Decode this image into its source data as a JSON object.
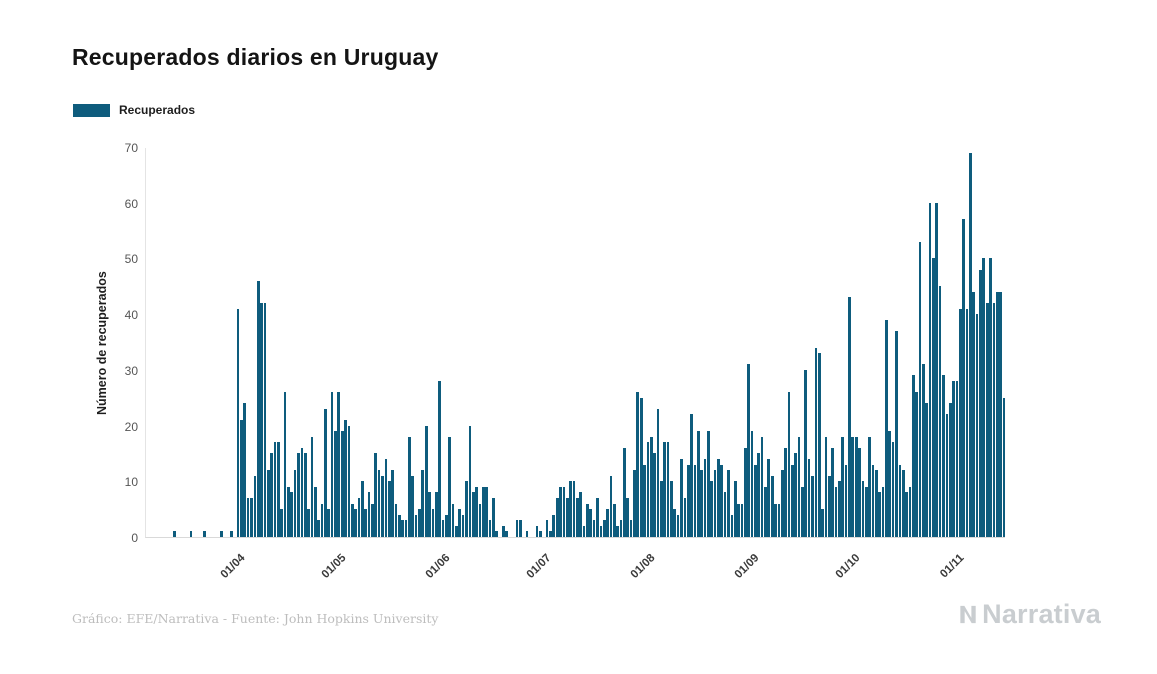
{
  "page": {
    "title": "Recuperados diarios en Uruguay"
  },
  "legend": {
    "label": "Recuperados"
  },
  "footer": {
    "credit": "Gráfico: EFE/Narrativa - Fuente: John Hopkins University"
  },
  "logo": {
    "text": "Narrativa"
  },
  "colors": {
    "bar": "#0e5c7d",
    "axis_line": "#dcdcdc",
    "tick_text": "#3a3a3a"
  },
  "chart_data": {
    "type": "bar",
    "title": "Recuperados diarios en Uruguay",
    "series_name": "Recuperados",
    "xlabel": "",
    "ylabel": "Número de recuperados",
    "ylim": [
      0,
      70
    ],
    "grid": false,
    "legend_position": "top-left",
    "yticks": [
      0,
      10,
      20,
      30,
      40,
      50,
      60,
      70
    ],
    "xticks": [
      {
        "label": "01/04",
        "index": 27
      },
      {
        "label": "01/05",
        "index": 57
      },
      {
        "label": "01/06",
        "index": 88
      },
      {
        "label": "01/07",
        "index": 118
      },
      {
        "label": "01/08",
        "index": 149
      },
      {
        "label": "01/09",
        "index": 180
      },
      {
        "label": "01/10",
        "index": 210
      },
      {
        "label": "01/11",
        "index": 241
      }
    ],
    "values": [
      0,
      0,
      0,
      0,
      0,
      0,
      0,
      0,
      1,
      0,
      0,
      0,
      0,
      1,
      0,
      0,
      0,
      1,
      0,
      0,
      0,
      0,
      1,
      0,
      0,
      1,
      0,
      41,
      21,
      24,
      7,
      7,
      11,
      46,
      42,
      42,
      12,
      15,
      17,
      17,
      5,
      26,
      9,
      8,
      12,
      15,
      16,
      15,
      5,
      18,
      9,
      3,
      6,
      23,
      5,
      26,
      19,
      26,
      19,
      21,
      20,
      6,
      5,
      7,
      10,
      5,
      8,
      6,
      15,
      12,
      11,
      14,
      10,
      12,
      6,
      4,
      3,
      3,
      18,
      11,
      4,
      5,
      12,
      20,
      8,
      5,
      8,
      28,
      3,
      4,
      18,
      6,
      2,
      5,
      4,
      10,
      20,
      8,
      9,
      6,
      9,
      9,
      3,
      7,
      1,
      0,
      2,
      1,
      0,
      0,
      3,
      3,
      0,
      1,
      0,
      0,
      2,
      1,
      0,
      3,
      1,
      4,
      7,
      9,
      9,
      7,
      10,
      10,
      7,
      8,
      2,
      6,
      5,
      3,
      7,
      2,
      3,
      5,
      11,
      6,
      2,
      3,
      16,
      7,
      3,
      12,
      26,
      25,
      13,
      17,
      18,
      15,
      23,
      10,
      17,
      17,
      10,
      5,
      4,
      14,
      7,
      13,
      22,
      13,
      19,
      12,
      14,
      19,
      10,
      12,
      14,
      13,
      8,
      12,
      4,
      10,
      6,
      6,
      16,
      31,
      19,
      13,
      15,
      18,
      9,
      14,
      11,
      6,
      6,
      12,
      16,
      26,
      13,
      15,
      18,
      9,
      30,
      14,
      11,
      34,
      33,
      5,
      18,
      11,
      16,
      9,
      10,
      18,
      13,
      43,
      18,
      18,
      16,
      10,
      9,
      18,
      13,
      12,
      8,
      9,
      39,
      19,
      17,
      37,
      13,
      12,
      8,
      9,
      29,
      26,
      53,
      31,
      24,
      60,
      50,
      60,
      45,
      29,
      22,
      24,
      28,
      28,
      41,
      57,
      41,
      69,
      44,
      40,
      48,
      50,
      42,
      50,
      42,
      44,
      44,
      25
    ]
  }
}
